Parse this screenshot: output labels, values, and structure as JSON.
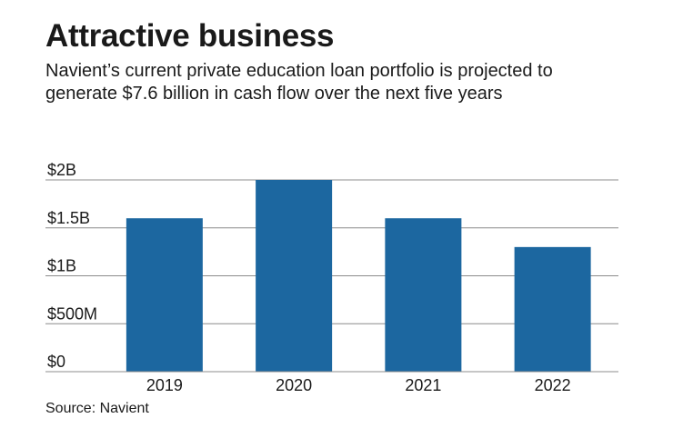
{
  "title": "Attractive business",
  "subtitle": "Navient’s current private education loan portfolio is projected to generate $7.6 billion in cash flow over the next five years",
  "source": "Source: Navient",
  "colors": {
    "bar": "#1c67a0",
    "grid": "#8c8c8c",
    "text": "#1a1a1a"
  },
  "chart_data": {
    "type": "bar",
    "categories": [
      "2019",
      "2020",
      "2021",
      "2022"
    ],
    "values": [
      1.6,
      2.0,
      1.6,
      1.3
    ],
    "unit": "billion USD",
    "ylim": [
      0,
      2
    ],
    "yticks": [
      0,
      0.5,
      1,
      1.5,
      2
    ],
    "ytick_labels": [
      "$0",
      "$500M",
      "$1B",
      "$1.5B",
      "$2B"
    ],
    "xlabel": "",
    "ylabel": "",
    "grid": true,
    "legend": "none"
  }
}
